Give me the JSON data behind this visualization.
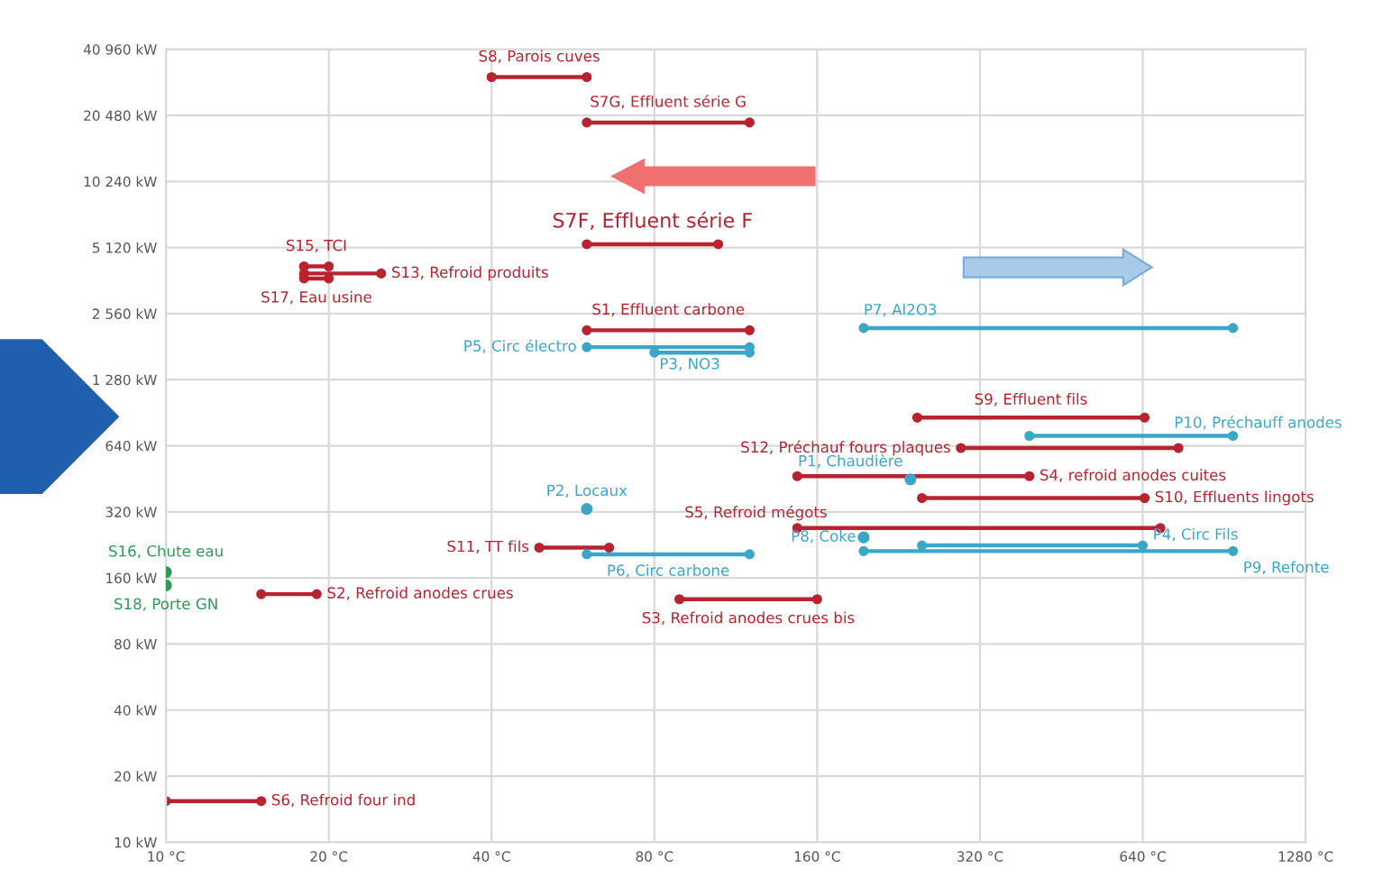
{
  "chart_data": {
    "type": "line",
    "log": "xy",
    "grid": true,
    "legend": false,
    "marker": "circle",
    "line_style": "solid",
    "xlim": [
      10,
      1280
    ],
    "ylim": [
      10,
      40960
    ],
    "xticks": [
      {
        "value": 10,
        "label": "10 °C"
      },
      {
        "value": 20,
        "label": "20 °C"
      },
      {
        "value": 40,
        "label": "40 °C"
      },
      {
        "value": 80,
        "label": "80 °C"
      },
      {
        "value": 160,
        "label": "160 °C"
      },
      {
        "value": 320,
        "label": "320 °C"
      },
      {
        "value": 640,
        "label": "640 °C"
      },
      {
        "value": 1280,
        "label": "1280 °C"
      }
    ],
    "yticks": [
      {
        "value": 10,
        "label": "10 kW"
      },
      {
        "value": 20,
        "label": "20 kW"
      },
      {
        "value": 40,
        "label": "40 kW"
      },
      {
        "value": 80,
        "label": "80 kW"
      },
      {
        "value": 160,
        "label": "160 kW"
      },
      {
        "value": 320,
        "label": "320 kW"
      },
      {
        "value": 640,
        "label": "640 kW"
      },
      {
        "value": 1280,
        "label": "1 280 kW"
      },
      {
        "value": 2560,
        "label": "2 560 kW"
      },
      {
        "value": 5120,
        "label": "5 120 kW"
      },
      {
        "value": 10240,
        "label": "10 240 kW"
      },
      {
        "value": 20480,
        "label": "20 480 kW"
      },
      {
        "value": 40960,
        "label": "40 960 kW"
      }
    ],
    "series": [
      {
        "name": "S8, Parois cuves",
        "color": "#b8232f",
        "x": [
          40,
          60
        ],
        "values": [
          30600,
          30600
        ]
      },
      {
        "name": "S7G, Effluent série G",
        "color": "#b8232f",
        "x": [
          60,
          120
        ],
        "values": [
          19000,
          19000
        ]
      },
      {
        "name": "S7F, Effluent série F",
        "color": "#b8232f",
        "x": [
          60,
          105
        ],
        "values": [
          5300,
          5300
        ]
      },
      {
        "name": "S15, TCI",
        "color": "#b8232f",
        "x": [
          18,
          20
        ],
        "values": [
          4200,
          4200
        ]
      },
      {
        "name": "S17, Eau usine",
        "color": "#b8232f",
        "x": [
          18,
          20
        ],
        "values": [
          3700,
          3700
        ]
      },
      {
        "name": "S13, Refroid produits",
        "color": "#b8232f",
        "x": [
          18,
          25
        ],
        "values": [
          3900,
          3900
        ]
      },
      {
        "name": "S1, Effluent carbone",
        "color": "#b8232f",
        "x": [
          60,
          120
        ],
        "values": [
          2150,
          2150
        ]
      },
      {
        "name": "P5, Circ électro",
        "color": "#3aa6c8",
        "x": [
          60,
          120
        ],
        "values": [
          1800,
          1800
        ]
      },
      {
        "name": "P3, NO3",
        "color": "#3aa6c8",
        "x": [
          80,
          120
        ],
        "values": [
          1700,
          1700
        ]
      },
      {
        "name": "P7, Al2O3",
        "color": "#3aa6c8",
        "x": [
          195,
          940
        ],
        "values": [
          2200,
          2200
        ]
      },
      {
        "name": "S9, Effluent fils",
        "color": "#b8232f",
        "x": [
          245,
          645
        ],
        "values": [
          860,
          860
        ]
      },
      {
        "name": "P10, Préchauff anodes",
        "color": "#3aa6c8",
        "x": [
          395,
          940
        ],
        "values": [
          710,
          710
        ]
      },
      {
        "name": "S12, Préchauf fours plaques",
        "color": "#b8232f",
        "x": [
          295,
          745
        ],
        "values": [
          625,
          625
        ]
      },
      {
        "name": "P1, Chaudière",
        "type": "scatter",
        "color": "#3aa6c8",
        "x": [
          238
        ],
        "values": [
          450
        ]
      },
      {
        "name": "S4, refroid anodes cuites",
        "color": "#b8232f",
        "x": [
          147,
          395
        ],
        "values": [
          465,
          465
        ]
      },
      {
        "name": "S10, Effluents lingots",
        "color": "#b8232f",
        "x": [
          250,
          645
        ],
        "values": [
          370,
          370
        ]
      },
      {
        "name": "S5, Refroid mégots",
        "color": "#b8232f",
        "x": [
          147,
          690
        ],
        "values": [
          270,
          270
        ]
      },
      {
        "name": "P8, Coke",
        "type": "scatter",
        "color": "#3aa6c8",
        "x": [
          195
        ],
        "values": [
          245
        ]
      },
      {
        "name": "P4, Circ Fils",
        "color": "#3aa6c8",
        "x": [
          250,
          640
        ],
        "values": [
          225,
          225
        ]
      },
      {
        "name": "P9, Refonte",
        "color": "#3aa6c8",
        "x": [
          195,
          940
        ],
        "values": [
          212,
          212
        ]
      },
      {
        "name": "P2, Locaux",
        "type": "scatter",
        "color": "#3aa6c8",
        "x": [
          60
        ],
        "values": [
          330
        ]
      },
      {
        "name": "S11, TT fils",
        "color": "#b8232f",
        "x": [
          49,
          66
        ],
        "values": [
          220,
          220
        ]
      },
      {
        "name": "P6, Circ carbone",
        "color": "#3aa6c8",
        "x": [
          60,
          120
        ],
        "values": [
          205,
          205
        ]
      },
      {
        "name": "S16, Chute eau",
        "type": "scatter",
        "color": "#2f9a55",
        "x": [
          10
        ],
        "values": [
          170
        ]
      },
      {
        "name": "S18, Porte GN",
        "type": "scatter",
        "color": "#2f9a55",
        "x": [
          10
        ],
        "values": [
          148
        ]
      },
      {
        "name": "S2, Refroid anodes crues",
        "color": "#b8232f",
        "x": [
          15,
          19
        ],
        "values": [
          135,
          135
        ]
      },
      {
        "name": "S3, Refroid anodes crues bis",
        "color": "#b8232f",
        "x": [
          89,
          160
        ],
        "values": [
          128,
          128
        ]
      },
      {
        "name": "S6, Refroid four ind",
        "color": "#b8232f",
        "x": [
          10,
          15
        ],
        "values": [
          15.4,
          15.4
        ]
      }
    ]
  }
}
